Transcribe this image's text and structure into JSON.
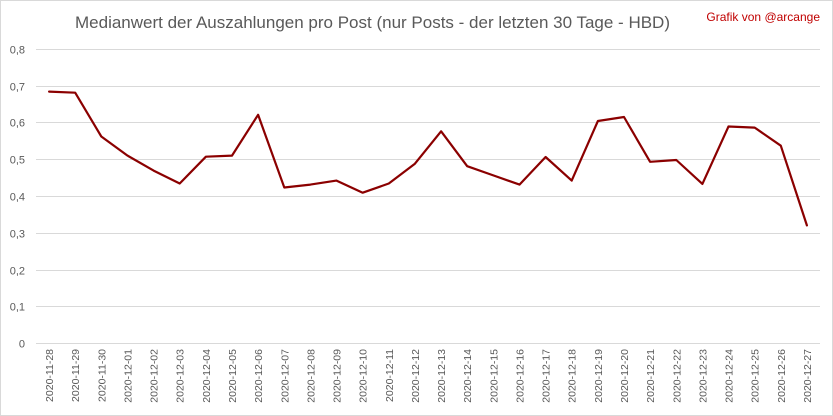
{
  "chart_data": {
    "type": "line",
    "title": "Medianwert der Auszahlungen pro Post (nur Posts - der letzten 30 Tage - HBD)",
    "credit": "Grafik von @arcange",
    "xlabel": "",
    "ylabel": "",
    "ylim": [
      0,
      0.8
    ],
    "y_ticks": [
      "0",
      "0,1",
      "0,2",
      "0,3",
      "0,4",
      "0,5",
      "0,6",
      "0,7",
      "0,8"
    ],
    "grid": true,
    "legend": "none",
    "line_color": "#8b0000",
    "categories": [
      "2020-11-28",
      "2020-11-29",
      "2020-11-30",
      "2020-12-01",
      "2020-12-02",
      "2020-12-03",
      "2020-12-04",
      "2020-12-05",
      "2020-12-06",
      "2020-12-07",
      "2020-12-08",
      "2020-12-09",
      "2020-12-10",
      "2020-12-11",
      "2020-12-12",
      "2020-12-13",
      "2020-12-14",
      "2020-12-15",
      "2020-12-16",
      "2020-12-17",
      "2020-12-18",
      "2020-12-19",
      "2020-12-20",
      "2020-12-21",
      "2020-12-22",
      "2020-12-23",
      "2020-12-24",
      "2020-12-25",
      "2020-12-26",
      "2020-12-27"
    ],
    "values": [
      0.684,
      0.681,
      0.562,
      0.51,
      0.469,
      0.434,
      0.507,
      0.51,
      0.621,
      0.423,
      0.431,
      0.442,
      0.409,
      0.434,
      0.488,
      0.576,
      0.481,
      0.456,
      0.431,
      0.506,
      0.442,
      0.604,
      0.615,
      0.493,
      0.498,
      0.433,
      0.589,
      0.586,
      0.537,
      0.32
    ]
  }
}
